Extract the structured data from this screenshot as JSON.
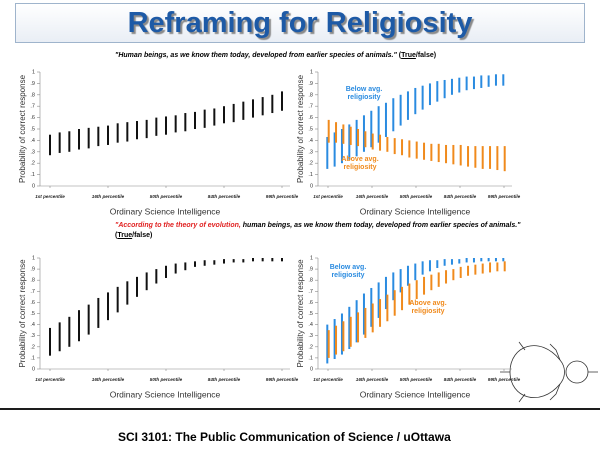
{
  "slide": {
    "title": "Reframing for Religiosity",
    "footer": "SCI 3101: The Public Communication of Science / uOttawa"
  },
  "questions": [
    {
      "segments": [
        {
          "text": "\"Human beings, as we know them today, developed from earlier species of animals.\" ",
          "style": "plain"
        },
        {
          "text": "(",
          "style": "normal"
        },
        {
          "text": "True",
          "style": "underline"
        },
        {
          "text": "/false)",
          "style": "normal"
        }
      ]
    },
    {
      "segments": [
        {
          "text": "\"According to the theory of evolution,",
          "style": "red"
        },
        {
          "text": " human beings, as we know them today, developed from earlier species of animals.\" ",
          "style": "plain"
        },
        {
          "text": "(",
          "style": "normal"
        },
        {
          "text": "True",
          "style": "underline"
        },
        {
          "text": "/false)",
          "style": "normal"
        }
      ]
    }
  ],
  "chart_data": [
    {
      "type": "range",
      "ylabel": "Probability of correct response",
      "xlabel": "Ordinary Science Intelligence",
      "categories": [
        "1st percentile",
        null,
        null,
        null,
        null,
        null,
        "16th percentile",
        null,
        null,
        null,
        null,
        null,
        "50th percentile",
        null,
        null,
        null,
        null,
        null,
        "84th percentile",
        null,
        null,
        null,
        null,
        null,
        "99th percentile"
      ],
      "ylim": [
        0,
        1
      ],
      "yticks": [
        0,
        {
          "value": 0.1,
          "label": ".1"
        },
        {
          "value": 0.2,
          "label": ".2"
        },
        {
          "value": 0.3,
          "label": ".3"
        },
        {
          "value": 0.4,
          "label": ".4"
        },
        {
          "value": 0.5,
          "label": ".5"
        },
        {
          "value": 0.6,
          "label": ".6"
        },
        {
          "value": 0.7,
          "label": ".7"
        },
        {
          "value": 0.8,
          "label": ".8"
        },
        {
          "value": 0.9,
          "label": ".9"
        },
        1
      ],
      "series": [
        {
          "color": "#111111",
          "low": [
            0.27,
            0.29,
            0.3,
            0.32,
            0.33,
            0.35,
            0.36,
            0.38,
            0.39,
            0.41,
            0.42,
            0.44,
            0.45,
            0.47,
            0.48,
            0.5,
            0.51,
            0.53,
            0.55,
            0.56,
            0.58,
            0.6,
            0.62,
            0.64,
            0.66
          ],
          "high": [
            0.45,
            0.47,
            0.48,
            0.5,
            0.51,
            0.52,
            0.53,
            0.55,
            0.56,
            0.57,
            0.58,
            0.6,
            0.61,
            0.62,
            0.64,
            0.65,
            0.67,
            0.68,
            0.7,
            0.72,
            0.74,
            0.76,
            0.78,
            0.8,
            0.83
          ]
        }
      ]
    },
    {
      "type": "range",
      "ylabel": "Probability of correct response",
      "xlabel": "Ordinary Science Intelligence",
      "categories": [
        "1st percentile",
        null,
        null,
        null,
        null,
        null,
        "16th percentile",
        null,
        null,
        null,
        null,
        null,
        "50th percentile",
        null,
        null,
        null,
        null,
        null,
        "84th percentile",
        null,
        null,
        null,
        null,
        null,
        "99th percentile"
      ],
      "ylim": [
        0,
        1
      ],
      "yticks": [
        0,
        {
          "value": 0.1,
          "label": ".1"
        },
        {
          "value": 0.2,
          "label": ".2"
        },
        {
          "value": 0.3,
          "label": ".3"
        },
        {
          "value": 0.4,
          "label": ".4"
        },
        {
          "value": 0.5,
          "label": ".5"
        },
        {
          "value": 0.6,
          "label": ".6"
        },
        {
          "value": 0.7,
          "label": ".7"
        },
        {
          "value": 0.8,
          "label": ".8"
        },
        {
          "value": 0.9,
          "label": ".9"
        },
        1
      ],
      "series": [
        {
          "name": "Below avg. religiosity",
          "color": "#2a8be0",
          "low": [
            0.15,
            0.17,
            0.2,
            0.23,
            0.26,
            0.3,
            0.34,
            0.38,
            0.43,
            0.48,
            0.53,
            0.58,
            0.63,
            0.67,
            0.71,
            0.74,
            0.77,
            0.8,
            0.82,
            0.84,
            0.85,
            0.86,
            0.87,
            0.88,
            0.88
          ],
          "high": [
            0.43,
            0.47,
            0.5,
            0.54,
            0.58,
            0.62,
            0.66,
            0.7,
            0.73,
            0.77,
            0.8,
            0.83,
            0.86,
            0.88,
            0.9,
            0.92,
            0.93,
            0.94,
            0.95,
            0.96,
            0.96,
            0.97,
            0.97,
            0.98,
            0.98
          ]
        },
        {
          "name": "Above avg. religiosity",
          "color": "#f08a1c",
          "low": [
            0.38,
            0.38,
            0.37,
            0.36,
            0.35,
            0.34,
            0.32,
            0.31,
            0.3,
            0.28,
            0.27,
            0.25,
            0.24,
            0.23,
            0.22,
            0.21,
            0.2,
            0.19,
            0.18,
            0.17,
            0.16,
            0.15,
            0.15,
            0.14,
            0.13
          ],
          "high": [
            0.58,
            0.56,
            0.54,
            0.52,
            0.5,
            0.48,
            0.46,
            0.45,
            0.43,
            0.42,
            0.41,
            0.4,
            0.39,
            0.38,
            0.37,
            0.37,
            0.36,
            0.36,
            0.36,
            0.35,
            0.35,
            0.35,
            0.35,
            0.35,
            0.35
          ]
        }
      ]
    },
    {
      "type": "range",
      "ylabel": "Probability of correct response",
      "xlabel": "Ordinary Science Intelligence",
      "categories": [
        "1st percentile",
        null,
        null,
        null,
        null,
        null,
        "16th percentile",
        null,
        null,
        null,
        null,
        null,
        "50th percentile",
        null,
        null,
        null,
        null,
        null,
        "84th percentile",
        null,
        null,
        null,
        null,
        null,
        "99th percentile"
      ],
      "ylim": [
        0,
        1
      ],
      "yticks": [
        0,
        {
          "value": 0.1,
          "label": ".1"
        },
        {
          "value": 0.2,
          "label": ".2"
        },
        {
          "value": 0.3,
          "label": ".3"
        },
        {
          "value": 0.4,
          "label": ".4"
        },
        {
          "value": 0.5,
          "label": ".5"
        },
        {
          "value": 0.6,
          "label": ".6"
        },
        {
          "value": 0.7,
          "label": ".7"
        },
        {
          "value": 0.8,
          "label": ".8"
        },
        {
          "value": 0.9,
          "label": ".9"
        },
        1
      ],
      "series": [
        {
          "color": "#111111",
          "low": [
            0.12,
            0.16,
            0.2,
            0.25,
            0.31,
            0.37,
            0.44,
            0.51,
            0.58,
            0.65,
            0.71,
            0.77,
            0.82,
            0.86,
            0.89,
            0.92,
            0.93,
            0.94,
            0.95,
            0.96,
            0.96,
            0.97,
            0.97,
            0.97,
            0.97
          ],
          "high": [
            0.37,
            0.42,
            0.47,
            0.53,
            0.58,
            0.64,
            0.69,
            0.74,
            0.79,
            0.83,
            0.87,
            0.9,
            0.93,
            0.95,
            0.96,
            0.97,
            0.98,
            0.98,
            0.99,
            0.99,
            0.99,
            1.0,
            1.0,
            1.0,
            1.0
          ]
        }
      ]
    },
    {
      "type": "range",
      "ylabel": "Probability of correct response",
      "xlabel": "Ordinary Science Intelligence",
      "categories": [
        "1st percentile",
        null,
        null,
        null,
        null,
        null,
        "16th percentile",
        null,
        null,
        null,
        null,
        null,
        "50th percentile",
        null,
        null,
        null,
        null,
        null,
        "84th percentile",
        null,
        null,
        null,
        null,
        null,
        "99th percentile"
      ],
      "ylim": [
        0,
        1
      ],
      "yticks": [
        0,
        {
          "value": 0.1,
          "label": ".1"
        },
        {
          "value": 0.2,
          "label": ".2"
        },
        {
          "value": 0.3,
          "label": ".3"
        },
        {
          "value": 0.4,
          "label": ".4"
        },
        {
          "value": 0.5,
          "label": ".5"
        },
        {
          "value": 0.6,
          "label": ".6"
        },
        {
          "value": 0.7,
          "label": ".7"
        },
        {
          "value": 0.8,
          "label": ".8"
        },
        {
          "value": 0.9,
          "label": ".9"
        },
        1
      ],
      "series": [
        {
          "name": "Below avg. religiosity",
          "color": "#2a8be0",
          "low": [
            0.05,
            0.09,
            0.13,
            0.18,
            0.24,
            0.31,
            0.38,
            0.46,
            0.54,
            0.62,
            0.69,
            0.75,
            0.8,
            0.85,
            0.88,
            0.91,
            0.93,
            0.94,
            0.95,
            0.96,
            0.96,
            0.97,
            0.97,
            0.97,
            0.97
          ],
          "high": [
            0.4,
            0.45,
            0.5,
            0.56,
            0.62,
            0.68,
            0.73,
            0.78,
            0.83,
            0.87,
            0.9,
            0.93,
            0.95,
            0.97,
            0.98,
            0.98,
            0.99,
            0.99,
            0.99,
            1.0,
            1.0,
            1.0,
            1.0,
            1.0,
            1.0
          ]
        },
        {
          "name": "Above avg. religiosity",
          "color": "#f08a1c",
          "low": [
            0.1,
            0.13,
            0.16,
            0.2,
            0.24,
            0.28,
            0.33,
            0.38,
            0.43,
            0.48,
            0.53,
            0.58,
            0.63,
            0.67,
            0.71,
            0.74,
            0.77,
            0.8,
            0.82,
            0.84,
            0.85,
            0.86,
            0.87,
            0.88,
            0.88
          ],
          "high": [
            0.35,
            0.39,
            0.43,
            0.47,
            0.51,
            0.55,
            0.59,
            0.63,
            0.67,
            0.71,
            0.74,
            0.77,
            0.8,
            0.83,
            0.85,
            0.87,
            0.89,
            0.9,
            0.92,
            0.93,
            0.94,
            0.95,
            0.96,
            0.96,
            0.97
          ]
        }
      ]
    }
  ]
}
